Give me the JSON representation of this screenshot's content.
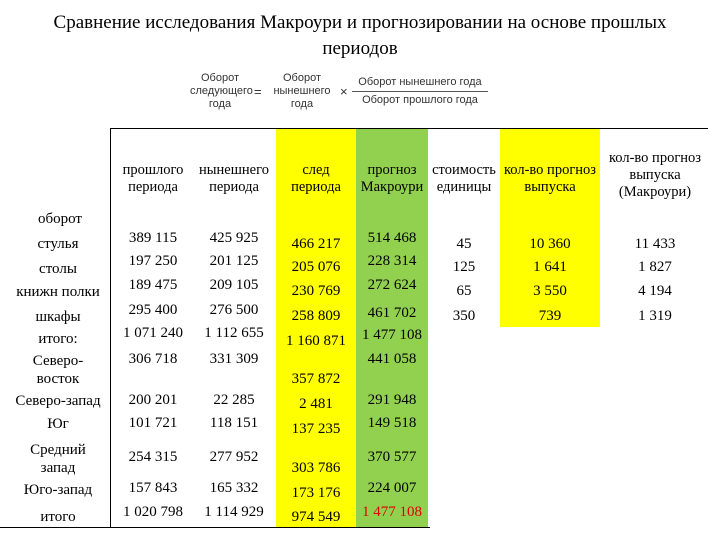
{
  "title": "Сравнение исследования Макроури и прогнозировании на основе прошлых периодов",
  "formula": {
    "left_top": "Оборот",
    "left_mid": "следующего",
    "left_bot": "года",
    "eq": "=",
    "mid_top": "Оборот",
    "mid_mid": "нынешнего",
    "mid_bot": "года",
    "times": "×",
    "right_num": "Оборот нынешнего года",
    "right_den": "Оборот прошлого года"
  },
  "colors": {
    "yellow": "#ffff00",
    "green": "#92d050",
    "red": "#e00000",
    "blue": "#4a6fd4"
  },
  "headers": {
    "prev": [
      "прошлого",
      "периода"
    ],
    "curr": [
      "нынешнего",
      "периода"
    ],
    "next": [
      "след",
      "периода"
    ],
    "forecast": [
      "прогноз",
      "Макроури"
    ],
    "cost": [
      "стоимость",
      "единицы"
    ],
    "qty": [
      "кол-во прогноз",
      "выпуска"
    ],
    "qtym": [
      "кол-во прогноз",
      "выпуска",
      "(Макроури)"
    ]
  },
  "row_labels": {
    "oborot": "оборот",
    "chairs": "стулья",
    "tables": "столы",
    "bookshelves": "книжн полки",
    "cabinets": "шкафы",
    "total1": "итого:",
    "northeast": [
      "Северо-",
      "восток"
    ],
    "northwest": "Северо-запад",
    "south": "Юг",
    "midwest": [
      "Средний",
      "запад"
    ],
    "southwest": "Юго-запад",
    "total2": "итого"
  },
  "values": {
    "prev": [
      "389 115",
      "197 250",
      "189 475",
      "295 400",
      "1 071 240",
      "306 718",
      "200 201",
      "101 721",
      "254 315",
      "157 843",
      "1 020 798"
    ],
    "curr": [
      "425 925",
      "201 125",
      "209 105",
      "276 500",
      "1 112 655",
      "331 309",
      "22 285",
      "118 151",
      "277 952",
      "165 332",
      "1 114 929"
    ],
    "next": [
      "466 217",
      "205 076",
      "230 769",
      "258 809",
      "1 160 871",
      "357 872",
      "2 481",
      "137 235",
      "303 786",
      "173 176",
      "974 549"
    ],
    "forecast": [
      "514 468",
      "228 314",
      "272 624",
      "461 702",
      "1 477 108",
      "441 058",
      "291 948",
      "149 518",
      "370 577",
      "224 007",
      "1 477 108"
    ],
    "cost": [
      "45",
      "125",
      "65",
      "350"
    ],
    "qty": [
      "10 360",
      "1 641",
      "3 550",
      "739"
    ],
    "qtym": [
      "11 433",
      "1 827",
      "4 194",
      "1 319"
    ]
  }
}
